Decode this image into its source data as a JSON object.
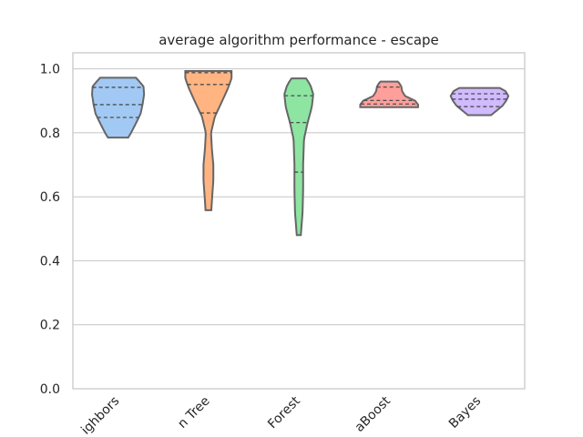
{
  "chart_data": {
    "type": "violin",
    "title": "average algorithm performance - escape",
    "xlabel": "",
    "ylabel": "",
    "ylim": [
      0,
      1.05
    ],
    "yticks": [
      "0.0",
      "0.2",
      "0.4",
      "0.6",
      "0.8",
      "1.0"
    ],
    "grid": true,
    "inner": "quartile",
    "cut": 0,
    "categories": [
      "ighbors",
      "n Tree",
      "Forest",
      "aBoost",
      "Bayes"
    ],
    "series": [
      {
        "color": "#a1c9f4",
        "min": 0.785,
        "max": 0.972,
        "quartiles": [
          0.848,
          0.888,
          0.942
        ],
        "density": [
          [
            0.785,
            0.35
          ],
          [
            0.8,
            0.45
          ],
          [
            0.83,
            0.62
          ],
          [
            0.86,
            0.78
          ],
          [
            0.89,
            0.85
          ],
          [
            0.92,
            0.9
          ],
          [
            0.945,
            0.88
          ],
          [
            0.96,
            0.74
          ],
          [
            0.972,
            0.62
          ]
        ]
      },
      {
        "color": "#ffb482",
        "min": 0.558,
        "max": 0.993,
        "quartiles": [
          0.862,
          0.951,
          0.988
        ],
        "density": [
          [
            0.558,
            0.1
          ],
          [
            0.6,
            0.13
          ],
          [
            0.65,
            0.17
          ],
          [
            0.7,
            0.17
          ],
          [
            0.75,
            0.12
          ],
          [
            0.8,
            0.09
          ],
          [
            0.85,
            0.22
          ],
          [
            0.9,
            0.48
          ],
          [
            0.94,
            0.68
          ],
          [
            0.97,
            0.8
          ],
          [
            0.993,
            0.8
          ]
        ]
      },
      {
        "color": "#8de5a1",
        "min": 0.48,
        "max": 0.97,
        "quartiles": [
          0.677,
          0.832,
          0.916
        ],
        "density": [
          [
            0.48,
            0.07
          ],
          [
            0.55,
            0.13
          ],
          [
            0.62,
            0.15
          ],
          [
            0.7,
            0.15
          ],
          [
            0.78,
            0.18
          ],
          [
            0.83,
            0.3
          ],
          [
            0.88,
            0.45
          ],
          [
            0.92,
            0.5
          ],
          [
            0.95,
            0.4
          ],
          [
            0.97,
            0.25
          ]
        ]
      },
      {
        "color": "#ff9f9b",
        "min": 0.88,
        "max": 0.96,
        "quartiles": [
          0.89,
          0.901,
          0.943
        ],
        "density": [
          [
            0.88,
            1.0
          ],
          [
            0.888,
            1.0
          ],
          [
            0.9,
            0.9
          ],
          [
            0.915,
            0.55
          ],
          [
            0.93,
            0.45
          ],
          [
            0.945,
            0.42
          ],
          [
            0.955,
            0.35
          ],
          [
            0.96,
            0.3
          ]
        ]
      },
      {
        "color": "#d0bbff",
        "min": 0.855,
        "max": 0.94,
        "quartiles": [
          0.882,
          0.905,
          0.922
        ],
        "density": [
          [
            0.855,
            0.4
          ],
          [
            0.87,
            0.6
          ],
          [
            0.885,
            0.8
          ],
          [
            0.9,
            0.92
          ],
          [
            0.915,
            1.0
          ],
          [
            0.93,
            0.9
          ],
          [
            0.94,
            0.7
          ]
        ]
      }
    ]
  }
}
